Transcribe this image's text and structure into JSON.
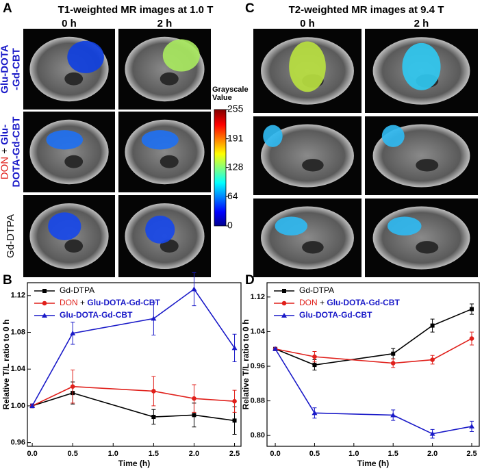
{
  "panels": [
    {
      "label": "A",
      "title": "T1-weighted MR images at 1.0 T",
      "columns": [
        "0 h",
        "2 h"
      ],
      "rows": [
        [
          "Glu-DOTA",
          "-Gd-CBT"
        ],
        [
          "DON + Glu-",
          "DOTA-Gd-CBT"
        ],
        [
          "Gd-DTPA"
        ]
      ]
    },
    {
      "label": "C",
      "title": "T2-weighted MR images at 9.4 T",
      "columns": [
        "0 h",
        "2 h"
      ]
    }
  ],
  "colorbar": {
    "title": [
      "Grayscale",
      "Value"
    ],
    "range": [
      0,
      255
    ],
    "ticks": [
      255,
      191,
      128,
      64,
      0
    ]
  },
  "chart_data": [
    {
      "type": "line",
      "label": "B",
      "xlabel": "Time (h)",
      "ylabel": "Relative T/L ratio to 0 h",
      "legend": "upper left",
      "x": [
        0,
        0.5,
        1.5,
        2,
        2.5
      ],
      "xlim": [
        -0.06,
        2.58
      ],
      "ylim": [
        0.956,
        1.134
      ],
      "xticks": [
        {
          "value": 0,
          "label": "0.0"
        },
        0.5,
        {
          "value": 1,
          "label": "1.0"
        },
        1.5,
        {
          "value": 2,
          "label": "2.0"
        },
        2.5
      ],
      "yticks": [
        {
          "value": 0.96,
          "label": "0.96"
        },
        {
          "value": 1,
          "label": "1.00"
        },
        {
          "value": 1.04,
          "label": "1.04"
        },
        {
          "value": 1.08,
          "label": "1.08"
        },
        {
          "value": 1.12,
          "label": "1.12"
        }
      ],
      "series": [
        {
          "name": "Gd-DTPA",
          "color": "#000000",
          "marker": "square",
          "values": [
            1.0,
            1.014,
            0.988,
            0.99,
            0.984
          ],
          "errors": [
            0.002,
            0.012,
            0.008,
            0.013,
            0.015
          ]
        },
        {
          "name": "DON + Glu-DOTA-Gd-CBT",
          "color": "#e0201b",
          "marker": "circle",
          "values": [
            1.0,
            1.021,
            1.016,
            1.008,
            1.005
          ],
          "errors": [
            0.002,
            0.018,
            0.016,
            0.015,
            0.012
          ]
        },
        {
          "name": "Glu-DOTA-Gd-CBT",
          "color": "#1a1ac8",
          "marker": "triangle",
          "values": [
            1.0,
            1.079,
            1.095,
            1.127,
            1.063
          ],
          "errors": [
            0.002,
            0.012,
            0.018,
            0.018,
            0.015
          ]
        }
      ]
    },
    {
      "type": "line",
      "label": "D",
      "xlabel": "Time (h)",
      "ylabel": "Relative T/L ratio to 0 h",
      "legend": "upper left",
      "x": [
        0,
        0.5,
        1.5,
        2,
        2.5
      ],
      "xlim": [
        -0.105,
        2.596
      ],
      "ylim": [
        0.775,
        1.153
      ],
      "xticks": [
        {
          "value": 0,
          "label": "0.0"
        },
        0.5,
        {
          "value": 1,
          "label": "1.0"
        },
        1.5,
        {
          "value": 2,
          "label": "2.0"
        },
        2.5
      ],
      "yticks": [
        {
          "value": 0.8,
          "label": "0.80"
        },
        {
          "value": 0.88,
          "label": "0.88"
        },
        {
          "value": 0.96,
          "label": "0.96"
        },
        {
          "value": 1.04,
          "label": "1.04"
        },
        {
          "value": 1.12,
          "label": "1.12"
        }
      ],
      "series": [
        {
          "name": "Gd-DTPA",
          "color": "#000000",
          "marker": "square",
          "values": [
            1.0,
            0.963,
            0.989,
            1.054,
            1.092
          ],
          "errors": [
            0.002,
            0.012,
            0.012,
            0.015,
            0.012
          ]
        },
        {
          "name": "DON + Glu-DOTA-Gd-CBT",
          "color": "#e0201b",
          "marker": "circle",
          "values": [
            1.0,
            0.982,
            0.967,
            0.975,
            1.024
          ],
          "errors": [
            0.002,
            0.012,
            0.01,
            0.01,
            0.015
          ]
        },
        {
          "name": "Glu-DOTA-Gd-CBT",
          "color": "#1a1ac8",
          "marker": "triangle",
          "values": [
            1.0,
            0.852,
            0.847,
            0.804,
            0.821
          ],
          "errors": [
            0.002,
            0.012,
            0.012,
            0.01,
            0.012
          ]
        }
      ]
    }
  ]
}
